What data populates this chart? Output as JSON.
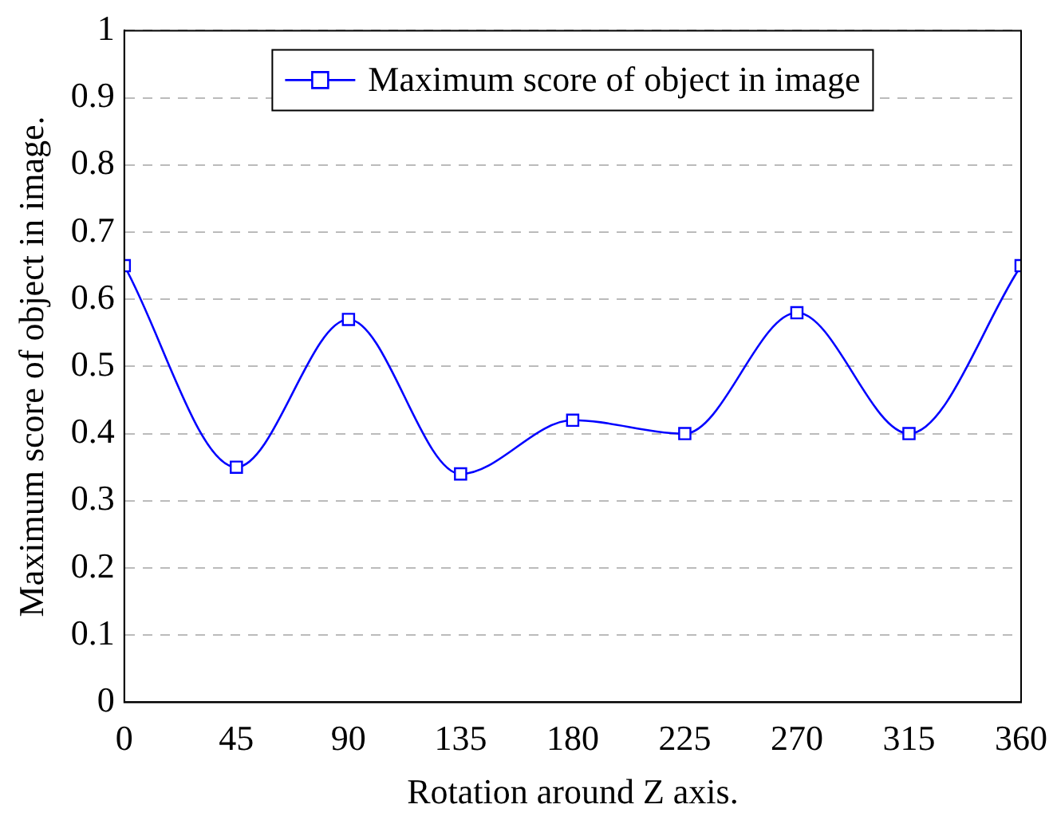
{
  "chart_data": {
    "type": "line",
    "xlabel": "Rotation around Z axis.",
    "ylabel": "Maximum score of object in image.",
    "x": [
      0,
      45,
      90,
      135,
      180,
      225,
      270,
      315,
      360
    ],
    "series": [
      {
        "name": "Maximum score of object in image",
        "color": "#0000ff",
        "values": [
          0.65,
          0.35,
          0.57,
          0.34,
          0.42,
          0.4,
          0.58,
          0.4,
          0.65
        ]
      }
    ],
    "xlim": [
      0,
      360
    ],
    "xticks": [
      0,
      45,
      90,
      135,
      180,
      225,
      270,
      315,
      360
    ],
    "ylim": [
      0,
      1
    ],
    "yticks": [
      0,
      0.1,
      0.2,
      0.3,
      0.4,
      0.5,
      0.6,
      0.7,
      0.8,
      0.9,
      1
    ],
    "grid": "y",
    "legend": "top",
    "marker": "square",
    "line_style": "solid"
  }
}
